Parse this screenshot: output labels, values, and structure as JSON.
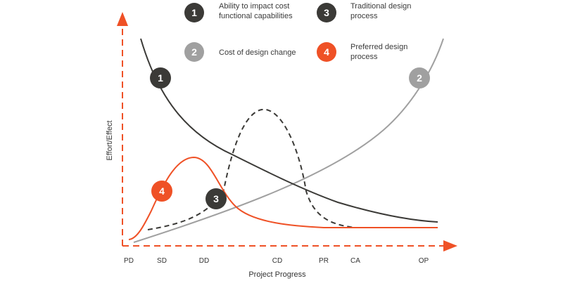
{
  "colors": {
    "dark": "#3b3a37",
    "gray": "#a0a0a0",
    "orange": "#ef5126",
    "axis": "#ef5126",
    "text": "#333333"
  },
  "legend": [
    {
      "num": "1",
      "color": "#3b3a37",
      "line1": "Ability to impact cost",
      "line2": "functional capabilities"
    },
    {
      "num": "2",
      "color": "#a0a0a0",
      "line1": "Cost of design change",
      "line2": ""
    },
    {
      "num": "3",
      "color": "#3b3a37",
      "line1": "Traditional design",
      "line2": "process"
    },
    {
      "num": "4",
      "color": "#ef5126",
      "line1": "Preferred design",
      "line2": "process"
    }
  ],
  "axes": {
    "x_label": "Project Progress",
    "y_label": "Effort/Effect",
    "x_ticks": [
      "PD",
      "SD",
      "DD",
      "CD",
      "PR",
      "CA",
      "OP"
    ]
  },
  "curves": [
    {
      "num": "1",
      "name": "Ability to impact cost functional capabilities",
      "style": "solid",
      "color": "#3b3a37"
    },
    {
      "num": "2",
      "name": "Cost of design change",
      "style": "solid",
      "color": "#a0a0a0"
    },
    {
      "num": "3",
      "name": "Traditional design process",
      "style": "dashed",
      "color": "#3b3a37"
    },
    {
      "num": "4",
      "name": "Preferred design process",
      "style": "solid",
      "color": "#ef5126"
    }
  ]
}
